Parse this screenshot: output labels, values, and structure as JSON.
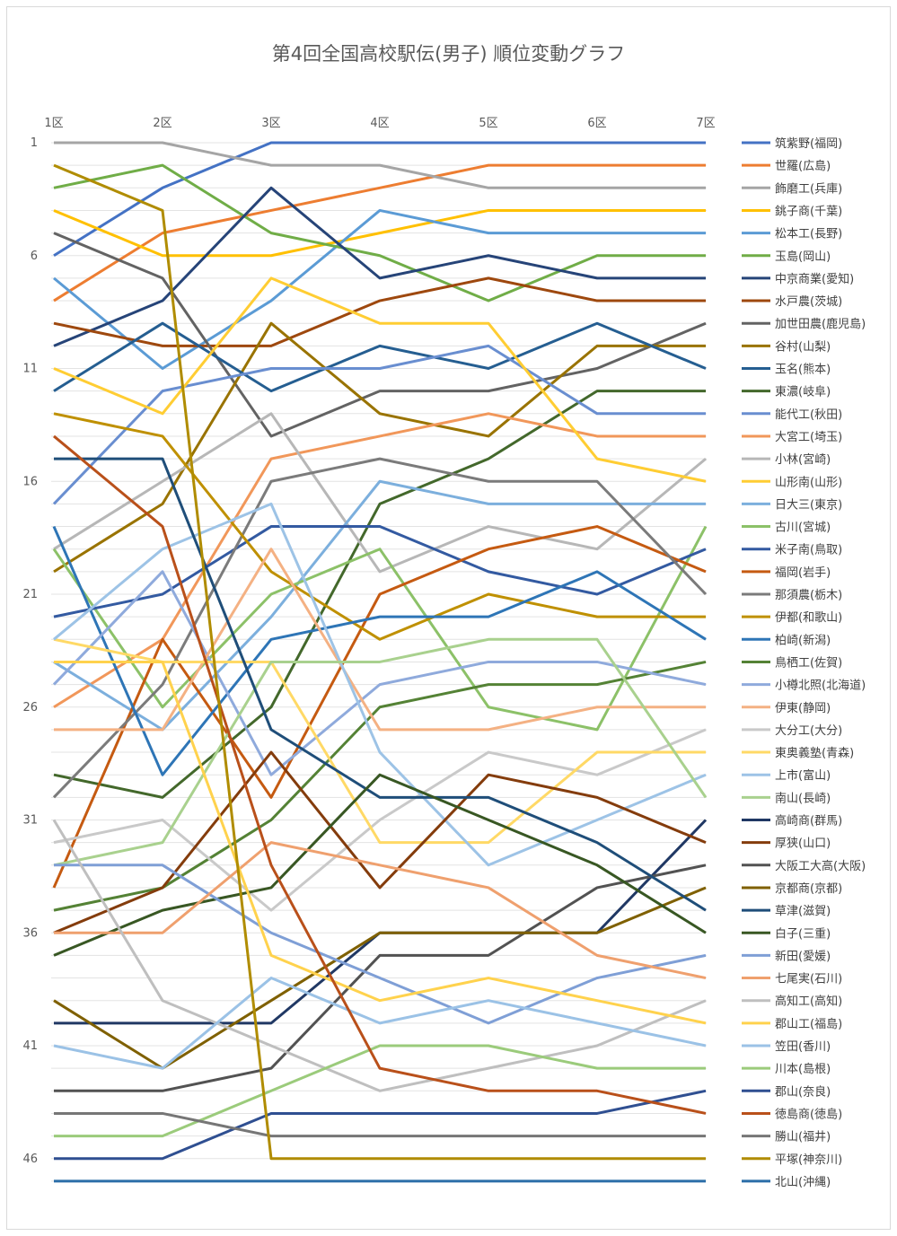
{
  "chart_data": {
    "type": "line",
    "title": "第4回全国高校駅伝(男子) 順位変動グラフ",
    "xlabel": "",
    "ylabel": "",
    "categories": [
      "1区",
      "2区",
      "3区",
      "4区",
      "5区",
      "6区",
      "7区"
    ],
    "y_ticks": [
      1,
      6,
      11,
      16,
      21,
      26,
      31,
      36,
      41,
      46
    ],
    "ylim": [
      1,
      47
    ],
    "y_inverted": true,
    "grid": true,
    "legend_position": "right",
    "series": [
      {
        "name": "筑紫野(福岡)",
        "color": "#4472C4",
        "values": [
          6,
          3,
          1,
          1,
          1,
          1,
          1
        ]
      },
      {
        "name": "世羅(広島)",
        "color": "#ED7D31",
        "values": [
          8,
          5,
          4,
          3,
          2,
          2,
          2
        ]
      },
      {
        "name": "飾磨工(兵庫)",
        "color": "#A5A5A5",
        "values": [
          1,
          1,
          2,
          2,
          3,
          3,
          3
        ]
      },
      {
        "name": "銚子商(千葉)",
        "color": "#FFC000",
        "values": [
          4,
          6,
          6,
          5,
          4,
          4,
          4
        ]
      },
      {
        "name": "松本工(長野)",
        "color": "#5B9BD5",
        "values": [
          7,
          11,
          8,
          4,
          5,
          5,
          5
        ]
      },
      {
        "name": "玉島(岡山)",
        "color": "#70AD47",
        "values": [
          3,
          2,
          5,
          6,
          8,
          6,
          6
        ]
      },
      {
        "name": "中京商業(愛知)",
        "color": "#264478",
        "values": [
          10,
          8,
          3,
          7,
          6,
          7,
          7
        ]
      },
      {
        "name": "水戸農(茨城)",
        "color": "#9E480E",
        "values": [
          9,
          10,
          10,
          8,
          7,
          8,
          8
        ]
      },
      {
        "name": "加世田農(鹿児島)",
        "color": "#636363",
        "values": [
          5,
          7,
          14,
          12,
          12,
          11,
          9
        ]
      },
      {
        "name": "谷村(山梨)",
        "color": "#997300",
        "values": [
          20,
          17,
          9,
          13,
          14,
          10,
          10
        ]
      },
      {
        "name": "玉名(熊本)",
        "color": "#255E91",
        "values": [
          12,
          9,
          12,
          10,
          11,
          9,
          11
        ]
      },
      {
        "name": "東濃(岐阜)",
        "color": "#43682B",
        "values": [
          29,
          30,
          26,
          17,
          15,
          12,
          12
        ]
      },
      {
        "name": "能代工(秋田)",
        "color": "#698ED0",
        "values": [
          17,
          12,
          11,
          11,
          10,
          13,
          13
        ]
      },
      {
        "name": "大宮工(埼玉)",
        "color": "#F1975A",
        "values": [
          26,
          23,
          15,
          14,
          13,
          14,
          14
        ]
      },
      {
        "name": "小林(宮崎)",
        "color": "#B7B7B7",
        "values": [
          19,
          16,
          13,
          20,
          18,
          19,
          15
        ]
      },
      {
        "name": "山形南(山形)",
        "color": "#FFCD33",
        "values": [
          11,
          13,
          7,
          9,
          9,
          15,
          16
        ]
      },
      {
        "name": "日大三(東京)",
        "color": "#7CAFDD",
        "values": [
          24,
          27,
          22,
          16,
          17,
          17,
          17
        ]
      },
      {
        "name": "古川(宮城)",
        "color": "#8CC168",
        "values": [
          19,
          26,
          21,
          19,
          26,
          27,
          18
        ]
      },
      {
        "name": "米子南(鳥取)",
        "color": "#335AA1",
        "values": [
          22,
          21,
          18,
          18,
          20,
          21,
          19
        ]
      },
      {
        "name": "福岡(岩手)",
        "color": "#C55A11",
        "values": [
          34,
          23,
          30,
          21,
          19,
          18,
          20
        ]
      },
      {
        "name": "那須農(栃木)",
        "color": "#7B7B7B",
        "values": [
          30,
          25,
          16,
          15,
          16,
          16,
          21
        ]
      },
      {
        "name": "伊都(和歌山)",
        "color": "#BF9000",
        "values": [
          13,
          14,
          20,
          23,
          21,
          22,
          22
        ]
      },
      {
        "name": "柏崎(新潟)",
        "color": "#2E75B6",
        "values": [
          18,
          29,
          23,
          22,
          22,
          20,
          23
        ]
      },
      {
        "name": "鳥栖工(佐賀)",
        "color": "#548235",
        "values": [
          35,
          34,
          31,
          26,
          25,
          25,
          24
        ]
      },
      {
        "name": "小樽北照(北海道)",
        "color": "#8FAADC",
        "values": [
          25,
          20,
          29,
          25,
          24,
          24,
          25
        ]
      },
      {
        "name": "伊東(静岡)",
        "color": "#F4B183",
        "values": [
          27,
          27,
          19,
          27,
          27,
          26,
          26
        ]
      },
      {
        "name": "大分工(大分)",
        "color": "#C9C9C9",
        "values": [
          32,
          31,
          35,
          31,
          28,
          29,
          27
        ]
      },
      {
        "name": "東奥義塾(青森)",
        "color": "#FFD966",
        "values": [
          23,
          24,
          24,
          32,
          32,
          28,
          28
        ]
      },
      {
        "name": "上市(富山)",
        "color": "#9DC3E6",
        "values": [
          23,
          19,
          17,
          28,
          33,
          31,
          29
        ]
      },
      {
        "name": "南山(長崎)",
        "color": "#A9D18E",
        "values": [
          33,
          32,
          24,
          24,
          23,
          23,
          30
        ]
      },
      {
        "name": "高崎商(群馬)",
        "color": "#203864",
        "values": [
          40,
          40,
          40,
          36,
          36,
          36,
          31
        ]
      },
      {
        "name": "厚狭(山口)",
        "color": "#843C0C",
        "values": [
          36,
          34,
          28,
          34,
          29,
          30,
          32
        ]
      },
      {
        "name": "大阪工大高(大阪)",
        "color": "#525252",
        "values": [
          43,
          43,
          42,
          37,
          37,
          34,
          33
        ]
      },
      {
        "name": "京都商(京都)",
        "color": "#7F6000",
        "values": [
          39,
          42,
          39,
          36,
          36,
          36,
          34
        ]
      },
      {
        "name": "草津(滋賀)",
        "color": "#1F4E79",
        "values": [
          15,
          15,
          27,
          30,
          30,
          32,
          35
        ]
      },
      {
        "name": "白子(三重)",
        "color": "#385723",
        "values": [
          37,
          35,
          34,
          29,
          31,
          33,
          36
        ]
      },
      {
        "name": "新田(愛媛)",
        "color": "#7F9FD6",
        "values": [
          33,
          33,
          36,
          38,
          40,
          38,
          37
        ]
      },
      {
        "name": "七尾実(石川)",
        "color": "#EFA06E",
        "values": [
          36,
          36,
          32,
          33,
          34,
          37,
          38
        ]
      },
      {
        "name": "高知工(高知)",
        "color": "#BFBFBF",
        "values": [
          31,
          39,
          41,
          43,
          42,
          41,
          39
        ]
      },
      {
        "name": "郡山工(福島)",
        "color": "#FFD24D",
        "values": [
          24,
          24,
          37,
          39,
          38,
          39,
          40
        ]
      },
      {
        "name": "笠田(香川)",
        "color": "#9BC2E6",
        "values": [
          41,
          42,
          38,
          40,
          39,
          40,
          41
        ]
      },
      {
        "name": "川本(島根)",
        "color": "#9BCB7B",
        "values": [
          45,
          45,
          43,
          41,
          41,
          42,
          42
        ]
      },
      {
        "name": "郡山(奈良)",
        "color": "#2F4F91",
        "values": [
          46,
          46,
          44,
          44,
          44,
          44,
          43
        ]
      },
      {
        "name": "徳島商(徳島)",
        "color": "#B9501A",
        "values": [
          14,
          18,
          33,
          42,
          43,
          43,
          44
        ]
      },
      {
        "name": "勝山(福井)",
        "color": "#767676",
        "values": [
          44,
          44,
          45,
          45,
          45,
          45,
          45
        ]
      },
      {
        "name": "平塚(神奈川)",
        "color": "#B08C00",
        "values": [
          2,
          4,
          46,
          46,
          46,
          46,
          46
        ]
      },
      {
        "name": "北山(沖縄)",
        "color": "#2B6DA8",
        "values": [
          47,
          47,
          47,
          47,
          47,
          47,
          47
        ]
      }
    ]
  }
}
